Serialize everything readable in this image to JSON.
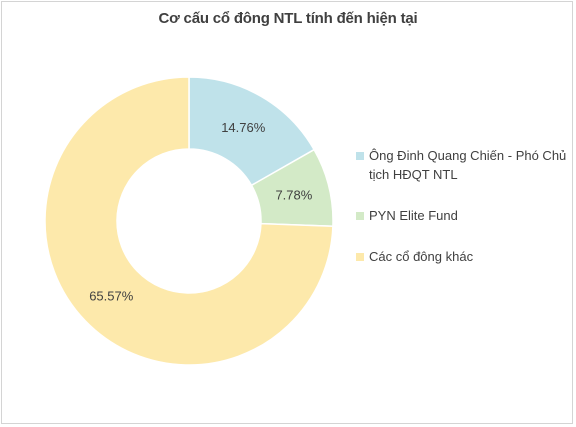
{
  "chart_data": {
    "type": "pie",
    "variant": "donut",
    "title": "Cơ cấu cổ đông NTL tính đến hiện tại",
    "series": [
      {
        "name": "Ông Đinh Quang Chiến - Phó Chủ tịch HĐQT NTL",
        "value": 14.76,
        "label": "14.76%",
        "color": "#bfe2ea"
      },
      {
        "name": "PYN Elite Fund",
        "value": 7.78,
        "label": "7.78%",
        "color": "#d3eac7"
      },
      {
        "name": "Các cổ đông khác",
        "value": 65.57,
        "label": "65.57%",
        "color": "#fde9ab"
      }
    ],
    "legend": "right",
    "start_angle_deg": 0,
    "direction": "clockwise"
  }
}
